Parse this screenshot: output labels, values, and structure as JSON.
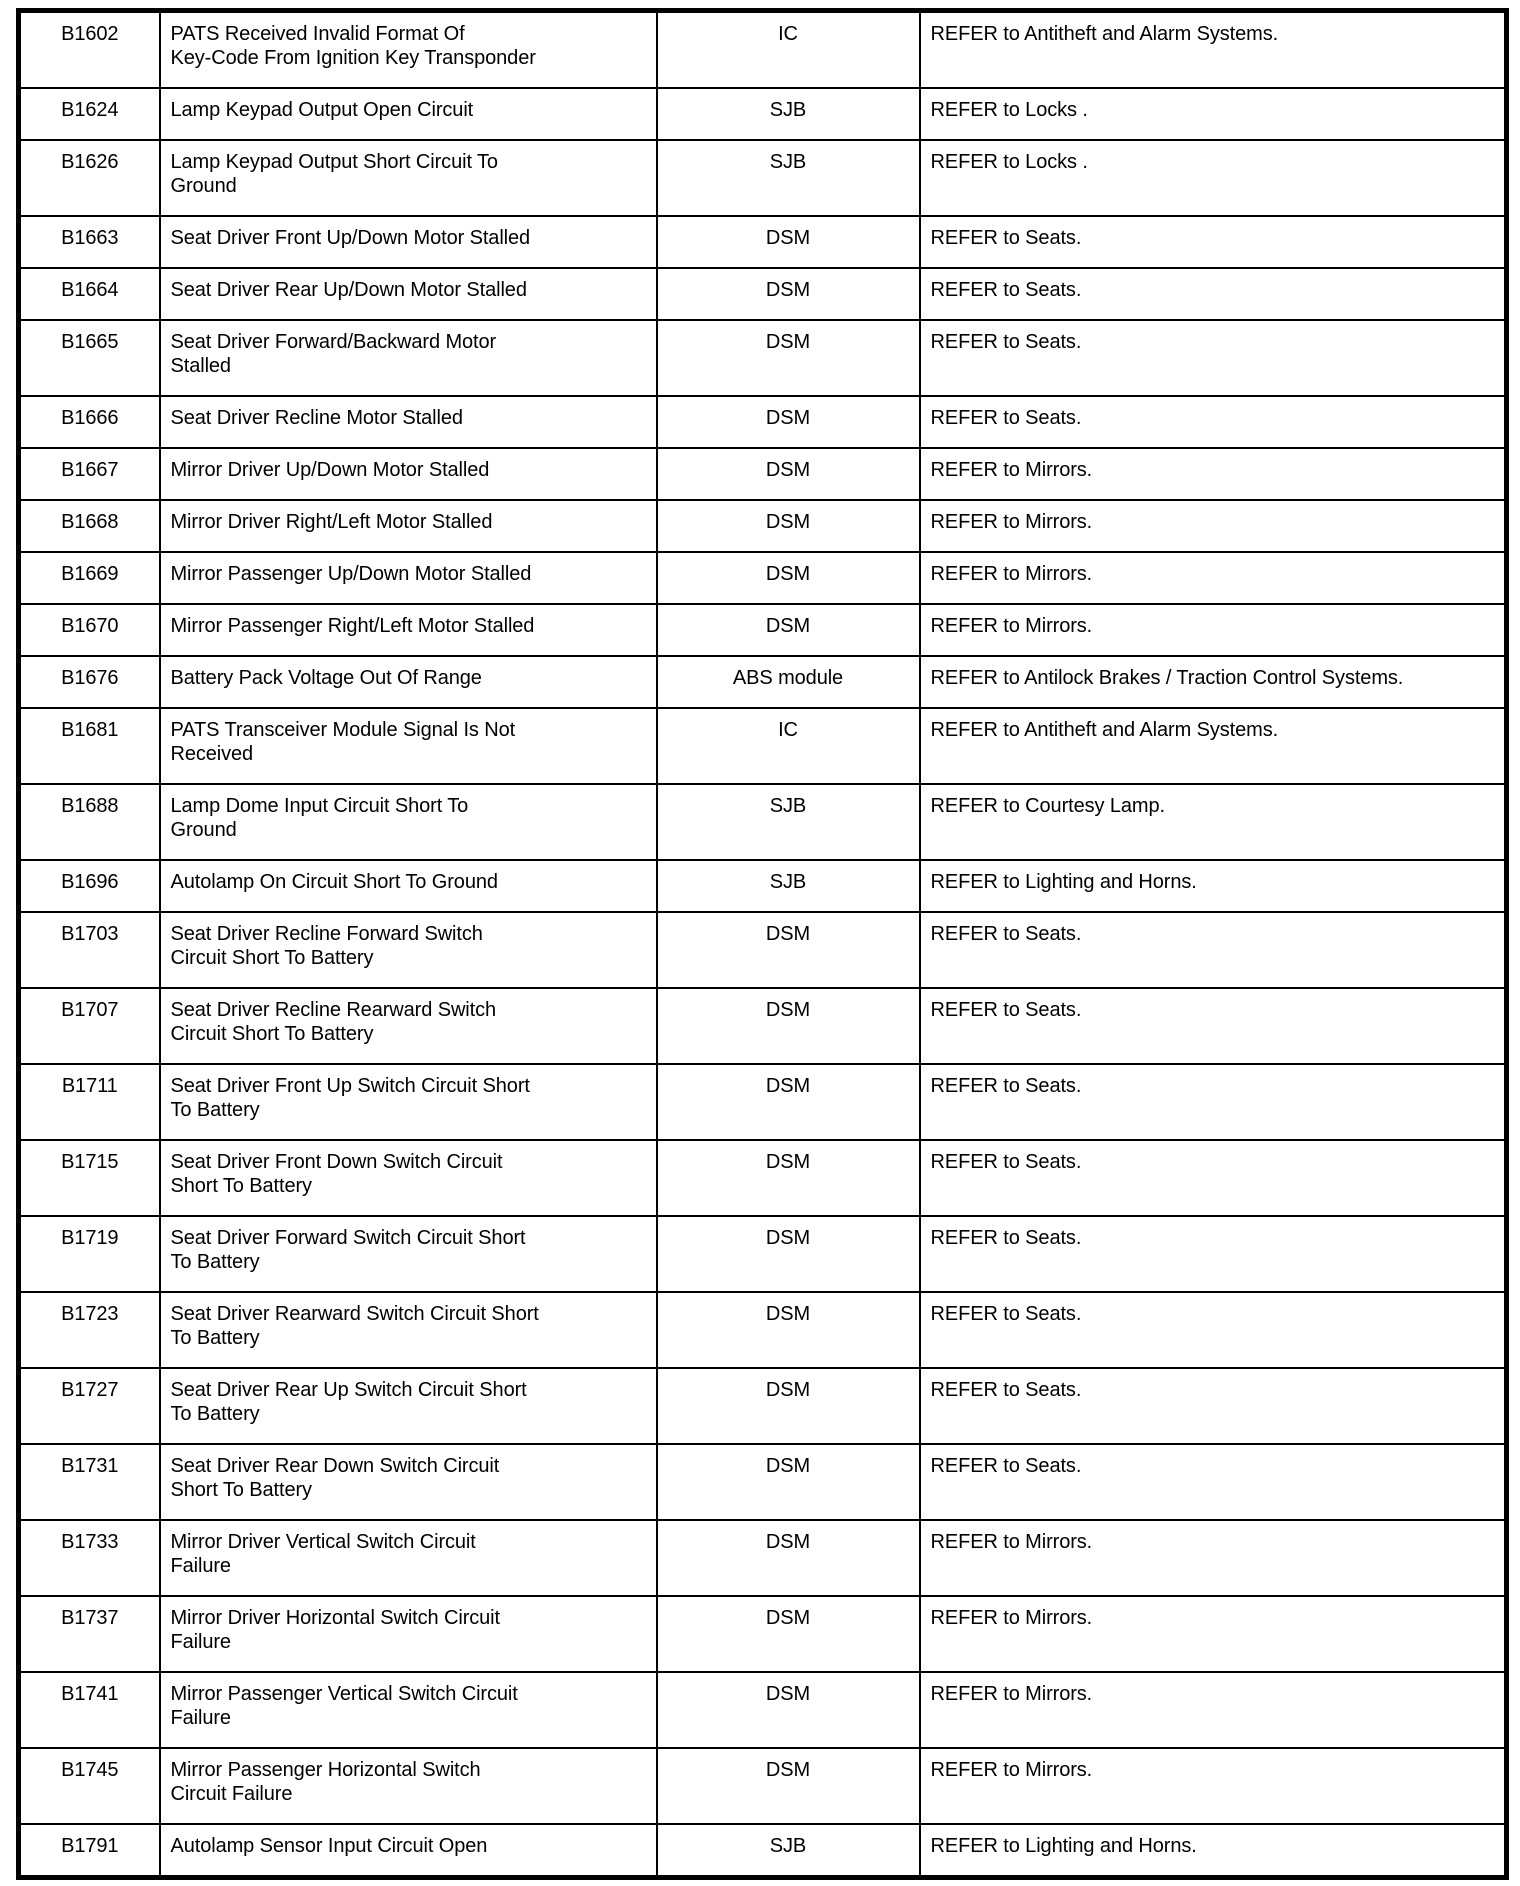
{
  "table": {
    "rows": [
      {
        "code": "B1602",
        "description": "PATS Received Invalid Format Of\nKey-Code From Ignition Key Transponder",
        "module": "IC",
        "action": "REFER to Antitheft and Alarm Systems."
      },
      {
        "code": "B1624",
        "description": "Lamp Keypad Output Open Circuit",
        "module": "SJB",
        "action": "REFER to Locks ."
      },
      {
        "code": "B1626",
        "description": "Lamp Keypad Output Short Circuit To\nGround",
        "module": "SJB",
        "action": "REFER to Locks ."
      },
      {
        "code": "B1663",
        "description": "Seat Driver Front Up/Down Motor Stalled",
        "module": "DSM",
        "action": "REFER to Seats."
      },
      {
        "code": "B1664",
        "description": "Seat Driver Rear Up/Down Motor Stalled",
        "module": "DSM",
        "action": "REFER to Seats."
      },
      {
        "code": "B1665",
        "description": "Seat Driver Forward/Backward Motor\nStalled",
        "module": "DSM",
        "action": "REFER to Seats."
      },
      {
        "code": "B1666",
        "description": "Seat Driver Recline Motor Stalled",
        "module": "DSM",
        "action": "REFER to Seats."
      },
      {
        "code": "B1667",
        "description": "Mirror Driver Up/Down Motor Stalled",
        "module": "DSM",
        "action": "REFER to Mirrors."
      },
      {
        "code": "B1668",
        "description": "Mirror Driver Right/Left Motor Stalled",
        "module": "DSM",
        "action": "REFER to Mirrors."
      },
      {
        "code": "B1669",
        "description": "Mirror Passenger Up/Down Motor Stalled",
        "module": "DSM",
        "action": "REFER to Mirrors."
      },
      {
        "code": "B1670",
        "description": "Mirror Passenger Right/Left Motor Stalled",
        "module": "DSM",
        "action": "REFER to Mirrors."
      },
      {
        "code": "B1676",
        "description": "Battery Pack Voltage Out Of Range",
        "module": "ABS module",
        "action": "REFER to Antilock Brakes / Traction Control Systems."
      },
      {
        "code": "B1681",
        "description": "PATS Transceiver Module Signal Is Not\nReceived",
        "module": "IC",
        "action": "REFER to Antitheft and Alarm Systems."
      },
      {
        "code": "B1688",
        "description": "Lamp Dome Input Circuit Short To\nGround",
        "module": "SJB",
        "action": "REFER to Courtesy Lamp."
      },
      {
        "code": "B1696",
        "description": "Autolamp On Circuit Short To Ground",
        "module": "SJB",
        "action": "REFER to Lighting and Horns."
      },
      {
        "code": "B1703",
        "description": "Seat Driver Recline Forward Switch\nCircuit Short To Battery",
        "module": "DSM",
        "action": "REFER to Seats."
      },
      {
        "code": "B1707",
        "description": "Seat Driver Recline Rearward Switch\nCircuit Short To Battery",
        "module": "DSM",
        "action": "REFER to Seats."
      },
      {
        "code": "B1711",
        "description": "Seat Driver Front Up Switch Circuit Short\nTo Battery",
        "module": "DSM",
        "action": "REFER to Seats."
      },
      {
        "code": "B1715",
        "description": "Seat Driver Front Down Switch Circuit\nShort To Battery",
        "module": "DSM",
        "action": "REFER to Seats."
      },
      {
        "code": "B1719",
        "description": "Seat Driver Forward Switch Circuit Short\nTo Battery",
        "module": "DSM",
        "action": "REFER to Seats."
      },
      {
        "code": "B1723",
        "description": "Seat Driver Rearward Switch Circuit Short\nTo Battery",
        "module": "DSM",
        "action": "REFER to Seats."
      },
      {
        "code": "B1727",
        "description": "Seat Driver Rear Up Switch Circuit Short\nTo Battery",
        "module": "DSM",
        "action": "REFER to Seats."
      },
      {
        "code": "B1731",
        "description": "Seat Driver Rear Down Switch Circuit\nShort To Battery",
        "module": "DSM",
        "action": "REFER to Seats."
      },
      {
        "code": "B1733",
        "description": "Mirror Driver Vertical Switch Circuit\nFailure",
        "module": "DSM",
        "action": "REFER to Mirrors."
      },
      {
        "code": "B1737",
        "description": "Mirror Driver Horizontal Switch Circuit\nFailure",
        "module": "DSM",
        "action": "REFER to Mirrors."
      },
      {
        "code": "B1741",
        "description": "Mirror Passenger Vertical Switch Circuit\nFailure",
        "module": "DSM",
        "action": "REFER to Mirrors."
      },
      {
        "code": "B1745",
        "description": "Mirror Passenger Horizontal Switch\nCircuit Failure",
        "module": "DSM",
        "action": "REFER to Mirrors."
      },
      {
        "code": "B1791",
        "description": "Autolamp Sensor Input Circuit Open",
        "module": "SJB",
        "action": "REFER to Lighting and Horns."
      }
    ]
  }
}
